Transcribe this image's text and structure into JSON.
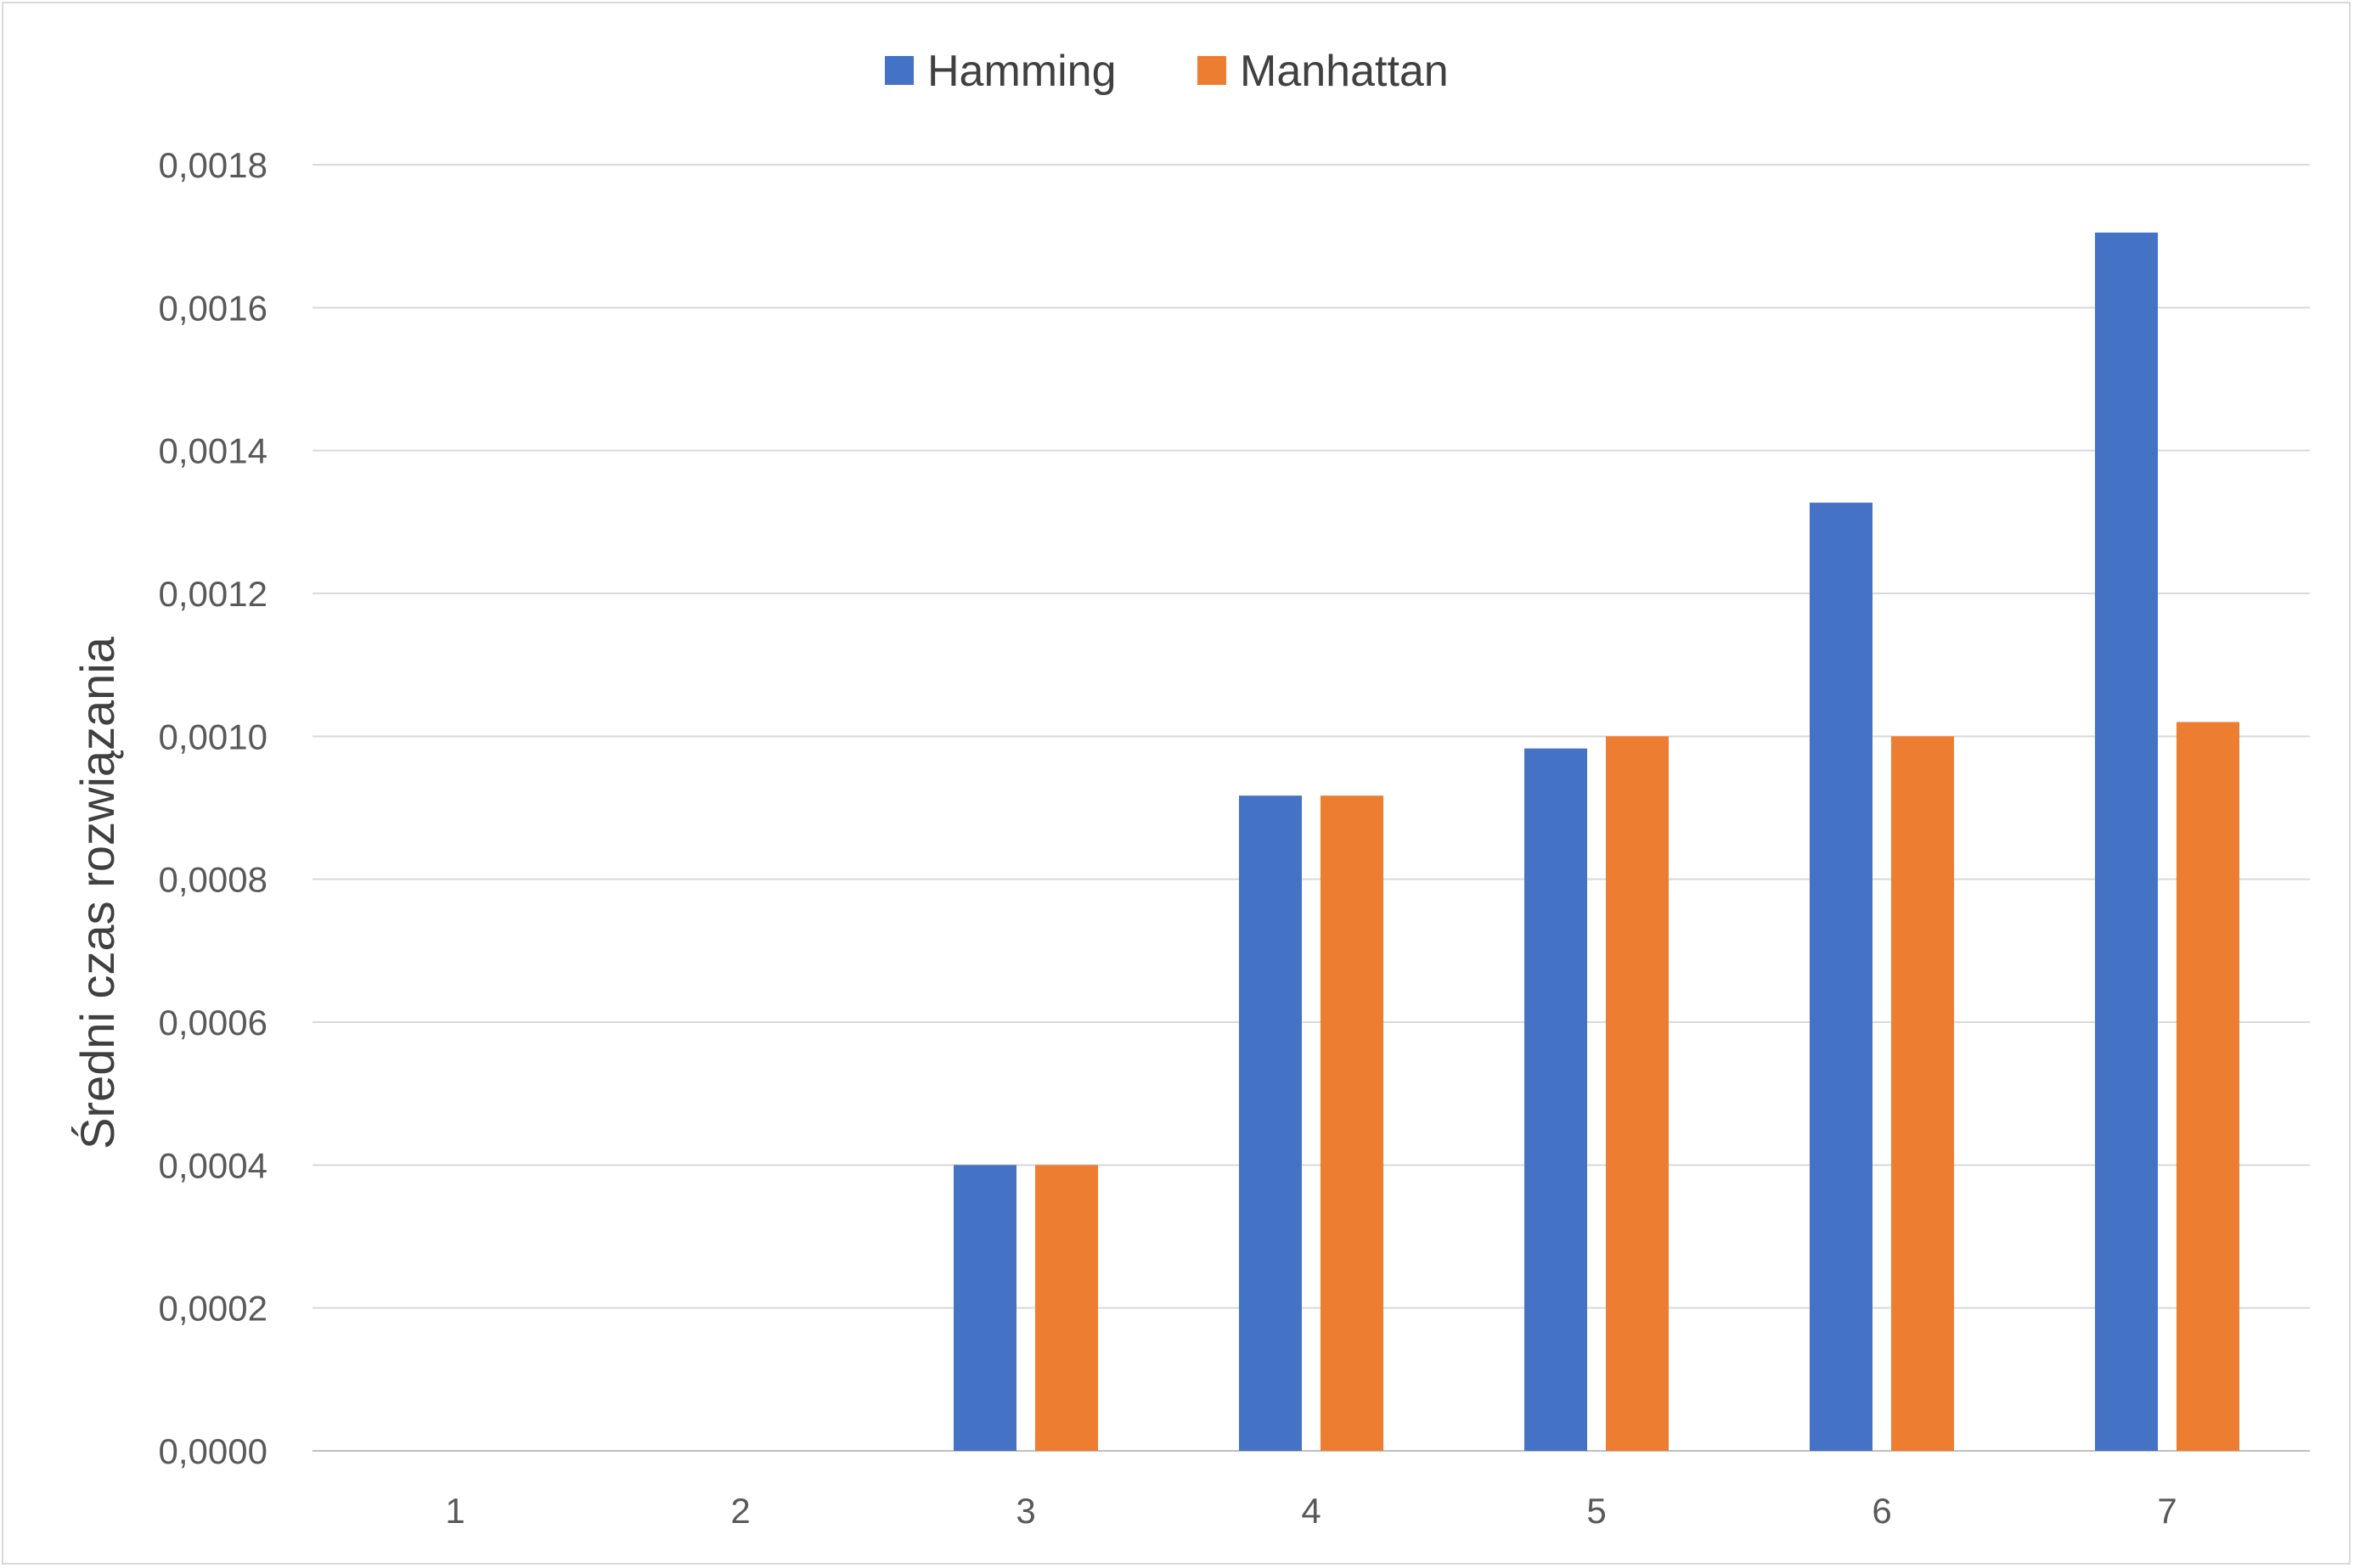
{
  "chart_data": {
    "type": "bar",
    "categories": [
      "1",
      "2",
      "3",
      "4",
      "5",
      "6",
      "7"
    ],
    "series": [
      {
        "name": "Hamming",
        "color": "#4472C4",
        "values": [
          0,
          0,
          0.0004,
          0.000917,
          0.000983,
          0.001327,
          0.001705
        ]
      },
      {
        "name": "Manhattan",
        "color": "#ED7D31",
        "values": [
          0,
          0,
          0.0004,
          0.000917,
          0.001,
          0.001,
          0.00102
        ]
      }
    ],
    "ylabel": "Średni czas rozwiązania",
    "xlabel": "",
    "ylim": [
      0,
      0.0018
    ],
    "yticks": [
      "0,0000",
      "0,0002",
      "0,0004",
      "0,0006",
      "0,0008",
      "0,0010",
      "0,0012",
      "0,0014",
      "0,0016",
      "0,0018"
    ],
    "ytick_values": [
      0,
      0.0002,
      0.0004,
      0.0006,
      0.0008,
      0.001,
      0.0012,
      0.0014,
      0.0016,
      0.0018
    ],
    "grid": true,
    "legend_position": "top"
  }
}
